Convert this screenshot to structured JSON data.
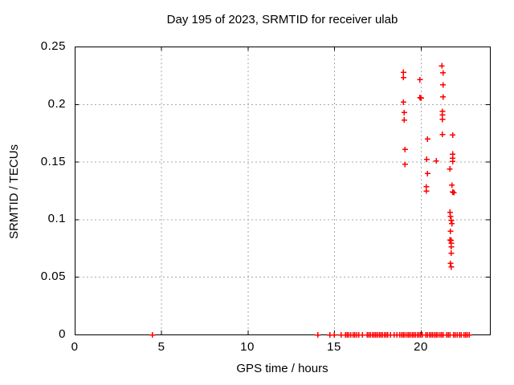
{
  "title": "Day 195 of 2023, SRMTID for receiver ulab",
  "xlabel": "GPS time / hours",
  "ylabel": "SRMTID / TECUs",
  "colors": {
    "marker": "#ff0000",
    "grid": "#a8a8a8",
    "border": "#000000",
    "background": "#ffffff",
    "text": "#000000"
  },
  "chart_data": {
    "type": "scatter",
    "title": "Day 195 of 2023, SRMTID for receiver ulab",
    "xlabel": "GPS time / hours",
    "ylabel": "SRMTID / TECUs",
    "xlim": [
      0,
      24
    ],
    "ylim": [
      0,
      0.25
    ],
    "xticks": [
      0,
      5,
      10,
      15,
      20
    ],
    "yticks": [
      0,
      0.05,
      0.1,
      0.15,
      0.2,
      0.25
    ],
    "xtick_labels": [
      "0",
      "5",
      "10",
      "15",
      "20"
    ],
    "ytick_labels": [
      "0",
      "0.05",
      "0.1",
      "0.15",
      "0.2",
      "0.25"
    ],
    "grid": true,
    "legend": false,
    "marker": "plus",
    "marker_size": 7,
    "series": [
      {
        "name": "SRMTID",
        "color": "#ff0000",
        "points": [
          [
            19.0,
            0.228
          ],
          [
            19.0,
            0.2235
          ],
          [
            19.0,
            0.202
          ],
          [
            19.05,
            0.193
          ],
          [
            19.05,
            0.1865
          ],
          [
            19.1,
            0.161
          ],
          [
            19.1,
            0.148
          ],
          [
            19.95,
            0.2215
          ],
          [
            19.95,
            0.206
          ],
          [
            20.03,
            0.2055
          ],
          [
            20.4,
            0.17
          ],
          [
            20.35,
            0.1525
          ],
          [
            20.4,
            0.14
          ],
          [
            20.33,
            0.1285
          ],
          [
            20.33,
            0.125
          ],
          [
            20.9,
            0.151
          ],
          [
            21.22,
            0.2335
          ],
          [
            21.29,
            0.2275
          ],
          [
            21.29,
            0.217
          ],
          [
            21.29,
            0.2065
          ],
          [
            21.26,
            0.194
          ],
          [
            21.26,
            0.191
          ],
          [
            21.26,
            0.187
          ],
          [
            21.26,
            0.174
          ],
          [
            21.85,
            0.1735
          ],
          [
            21.85,
            0.157
          ],
          [
            21.85,
            0.1535
          ],
          [
            21.85,
            0.1505
          ],
          [
            21.69,
            0.144
          ],
          [
            21.8,
            0.13
          ],
          [
            21.85,
            0.124
          ],
          [
            21.92,
            0.1235
          ],
          [
            21.7,
            0.1065
          ],
          [
            21.72,
            0.103
          ],
          [
            21.77,
            0.0995
          ],
          [
            21.8,
            0.0965
          ],
          [
            21.72,
            0.09
          ],
          [
            21.7,
            0.0825
          ],
          [
            21.76,
            0.082
          ],
          [
            21.77,
            0.0795
          ],
          [
            21.77,
            0.0765
          ],
          [
            21.77,
            0.071
          ],
          [
            21.72,
            0.062
          ],
          [
            21.77,
            0.059
          ],
          [
            4.5,
            0
          ],
          [
            14.05,
            0
          ],
          [
            14.75,
            0
          ],
          [
            15.0,
            0
          ],
          [
            15.4,
            0
          ],
          [
            15.65,
            0
          ],
          [
            15.75,
            0
          ],
          [
            15.85,
            0
          ],
          [
            15.95,
            0
          ],
          [
            16.1,
            0
          ],
          [
            16.2,
            0
          ],
          [
            16.3,
            0
          ],
          [
            16.42,
            0
          ],
          [
            16.62,
            0
          ],
          [
            16.92,
            0
          ],
          [
            17.0,
            0
          ],
          [
            17.1,
            0
          ],
          [
            17.2,
            0
          ],
          [
            17.3,
            0
          ],
          [
            17.4,
            0
          ],
          [
            17.5,
            0
          ],
          [
            17.6,
            0
          ],
          [
            17.7,
            0
          ],
          [
            17.8,
            0
          ],
          [
            17.9,
            0
          ],
          [
            18.0,
            0
          ],
          [
            18.1,
            0
          ],
          [
            18.25,
            0
          ],
          [
            18.47,
            0
          ],
          [
            18.63,
            0
          ],
          [
            18.8,
            0
          ],
          [
            18.9,
            0
          ],
          [
            19.0,
            0
          ],
          [
            19.1,
            0
          ],
          [
            19.2,
            0
          ],
          [
            19.3,
            0
          ],
          [
            19.4,
            0
          ],
          [
            19.5,
            0
          ],
          [
            19.6,
            0
          ],
          [
            19.7,
            0
          ],
          [
            19.8,
            0
          ],
          [
            19.9,
            0
          ],
          [
            20.0,
            0
          ],
          [
            20.1,
            0
          ],
          [
            20.3,
            0
          ],
          [
            20.4,
            0
          ],
          [
            20.5,
            0
          ],
          [
            20.6,
            0
          ],
          [
            20.7,
            0
          ],
          [
            20.8,
            0
          ],
          [
            20.9,
            0
          ],
          [
            21.0,
            0
          ],
          [
            21.1,
            0
          ],
          [
            21.2,
            0
          ],
          [
            21.3,
            0
          ],
          [
            21.5,
            0
          ],
          [
            21.6,
            0
          ],
          [
            21.7,
            0
          ],
          [
            21.9,
            0
          ],
          [
            22.0,
            0
          ],
          [
            22.1,
            0
          ],
          [
            22.25,
            0
          ],
          [
            22.35,
            0
          ],
          [
            22.5,
            0
          ],
          [
            22.6,
            0
          ],
          [
            22.7,
            0
          ],
          [
            22.8,
            0
          ]
        ]
      }
    ]
  }
}
